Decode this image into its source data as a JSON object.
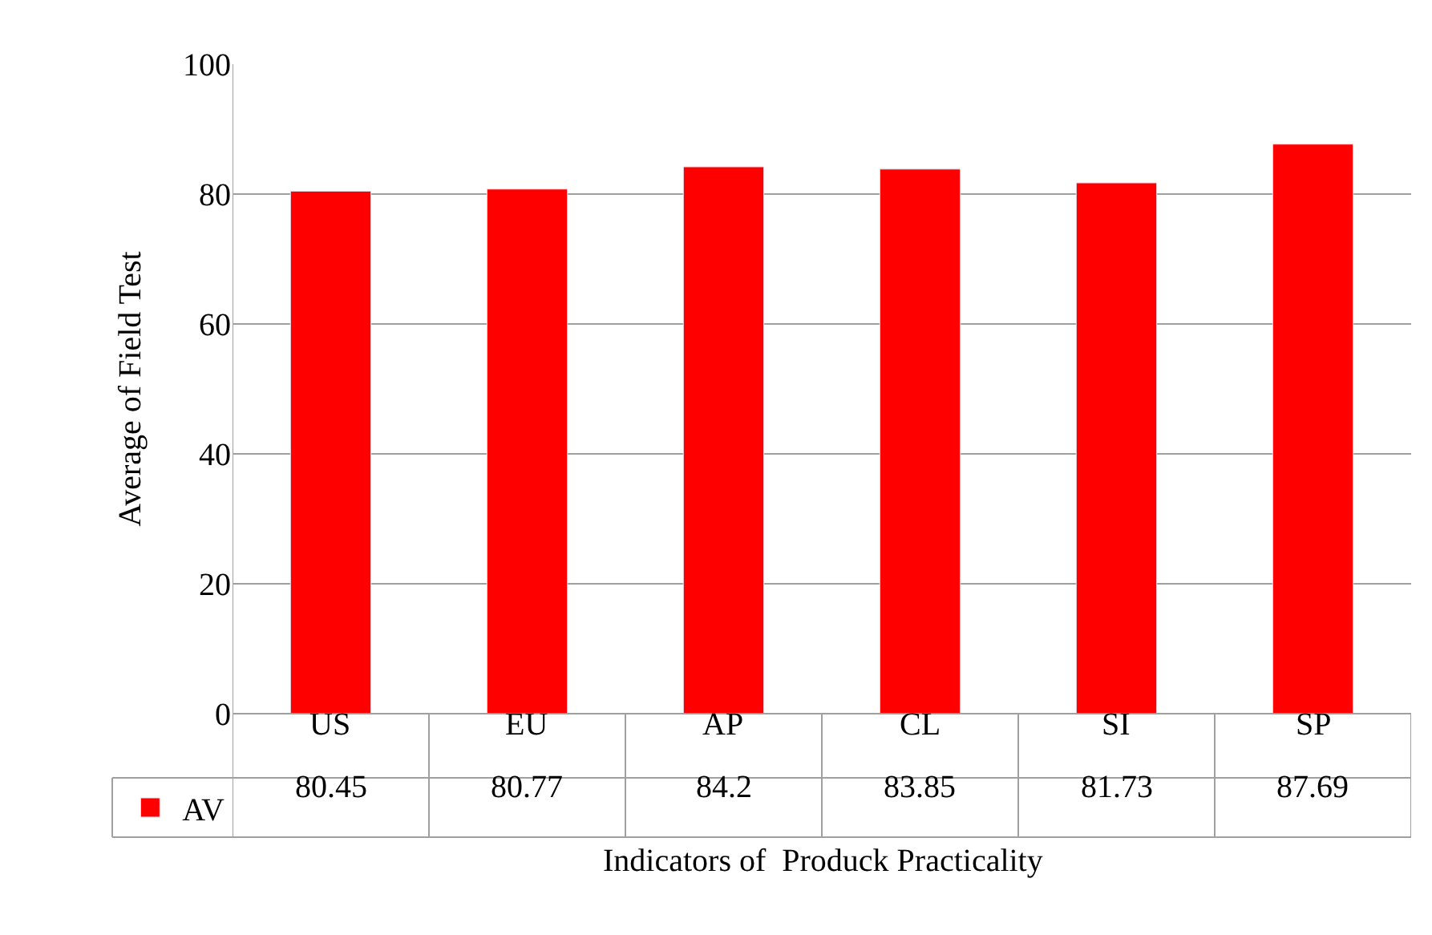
{
  "chart_data": {
    "type": "bar",
    "xlabel": "Indicators of  Produck Practicality",
    "ylabel": "Average of Field Test",
    "categories": [
      "US",
      "EU",
      "AP",
      "CL",
      "SI",
      "SP"
    ],
    "series": [
      {
        "name": "AV",
        "color": "#ff0000",
        "values": [
          80.45,
          80.77,
          84.2,
          83.85,
          81.73,
          87.69
        ]
      }
    ],
    "ylim": [
      0,
      100
    ],
    "yticks": [
      0,
      20,
      40,
      60,
      80,
      100
    ],
    "grid": "y",
    "legend": "bottom left",
    "data_labels": true
  }
}
